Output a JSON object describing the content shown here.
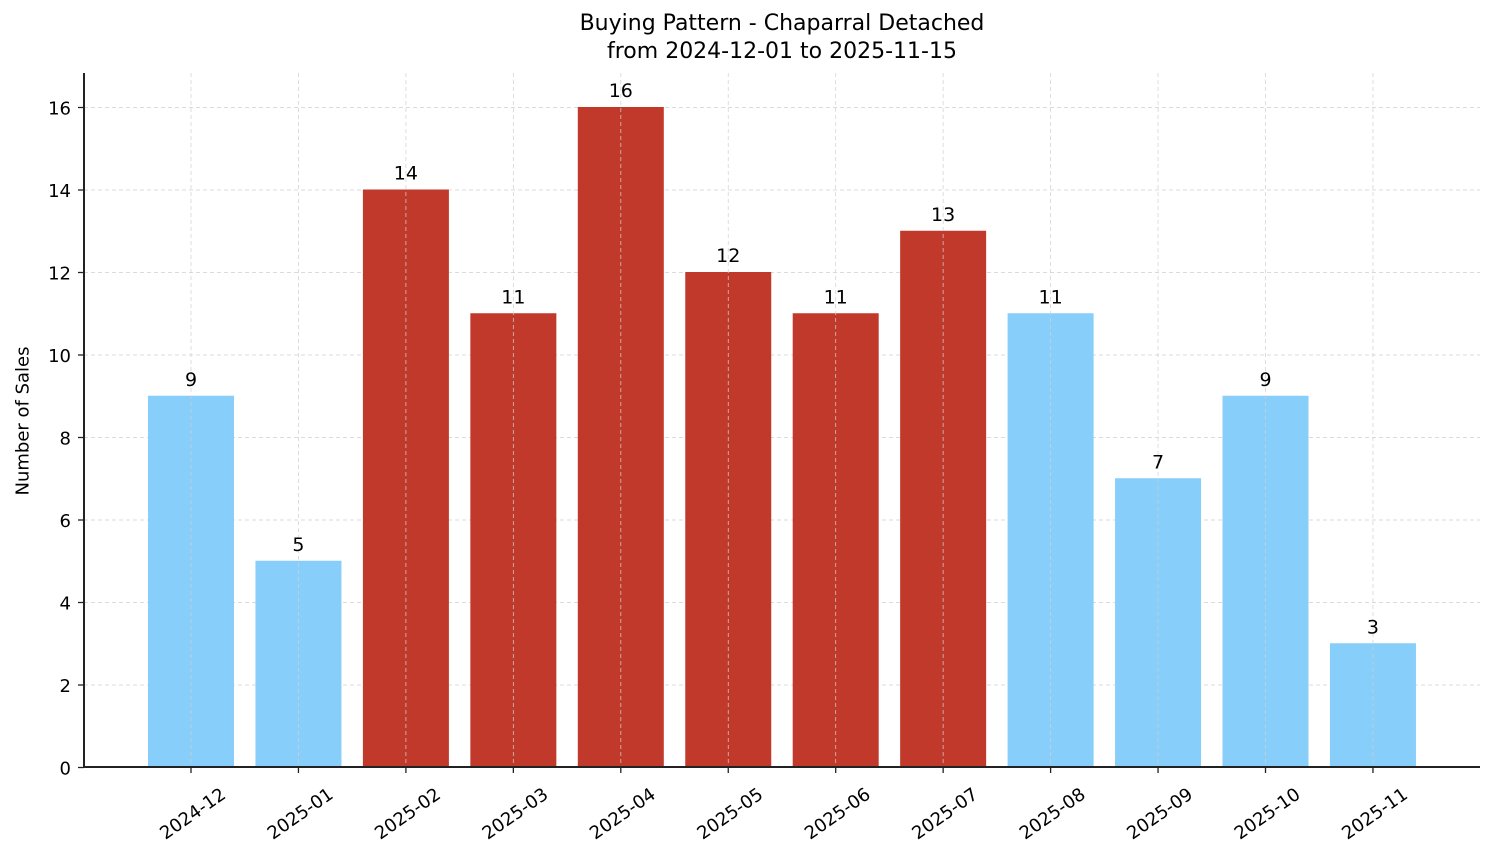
{
  "chart_data": {
    "type": "bar",
    "title": "Buying Pattern - Chaparral Detached",
    "subtitle": "from 2024-12-01 to 2025-11-15",
    "xlabel": "",
    "ylabel": "Number of Sales",
    "categories": [
      "2024-12",
      "2025-01",
      "2025-02",
      "2025-03",
      "2025-04",
      "2025-05",
      "2025-06",
      "2025-07",
      "2025-08",
      "2025-09",
      "2025-10",
      "2025-11"
    ],
    "values": [
      9,
      5,
      14,
      11,
      16,
      12,
      11,
      13,
      11,
      7,
      9,
      3
    ],
    "bar_colors": [
      "#87CEFA",
      "#87CEFA",
      "#C0392B",
      "#C0392B",
      "#C0392B",
      "#C0392B",
      "#C0392B",
      "#C0392B",
      "#87CEFA",
      "#87CEFA",
      "#87CEFA",
      "#87CEFA"
    ],
    "highlight_color": "#C0392B",
    "base_color": "#87CEFA",
    "yticks": [
      0,
      2,
      4,
      6,
      8,
      10,
      12,
      14,
      16
    ],
    "ylim": [
      0,
      16.8
    ],
    "grid": true,
    "data_labels": true,
    "legend": null
  }
}
